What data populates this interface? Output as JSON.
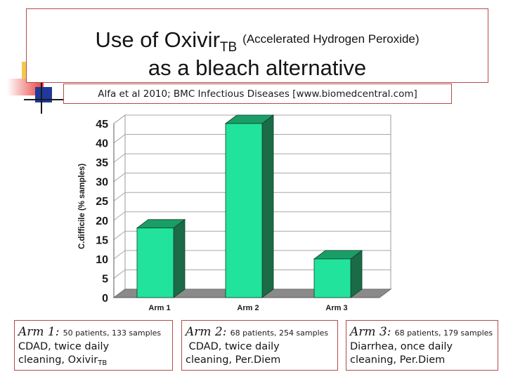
{
  "title": {
    "main": "Use of Oxivir",
    "sub": "TB",
    "parenthetical": "(Accelerated Hydrogen Peroxide)",
    "line2": "as a bleach alternative"
  },
  "citation": "Alfa et al 2010; BMC Infectious Diseases [www.biomedcentral.com]",
  "chart_data": {
    "type": "bar",
    "categories": [
      "Arm 1",
      "Arm 2",
      "Arm 3"
    ],
    "values": [
      18,
      45,
      10
    ],
    "title": "",
    "xlabel": "",
    "ylabel": "C.difficile (% samples)",
    "ylim": [
      0,
      45
    ],
    "yticks": [
      "0",
      "5",
      "10",
      "15",
      "20",
      "25",
      "30",
      "35",
      "40",
      "45"
    ],
    "grid": true,
    "bar_color": "#22e39b",
    "bar_side_color": "#1b6b47",
    "floor_color": "#8a8a8a"
  },
  "arms": [
    {
      "name": "Arm 1:",
      "detail": "50 patients, 133 samples",
      "line1": "CDAD, twice daily",
      "line2": "cleaning, Oxivir",
      "line2_sub": "TB"
    },
    {
      "name": "Arm 2:",
      "detail": "68 patients, 254 samples",
      "line1": " CDAD, twice daily",
      "line2": "cleaning, Per.Diem",
      "line2_sub": ""
    },
    {
      "name": "Arm 3:",
      "detail": "68 patients, 179 samples",
      "line1": "Diarrhea, once daily",
      "line2": "cleaning, Per.Diem",
      "line2_sub": ""
    }
  ]
}
